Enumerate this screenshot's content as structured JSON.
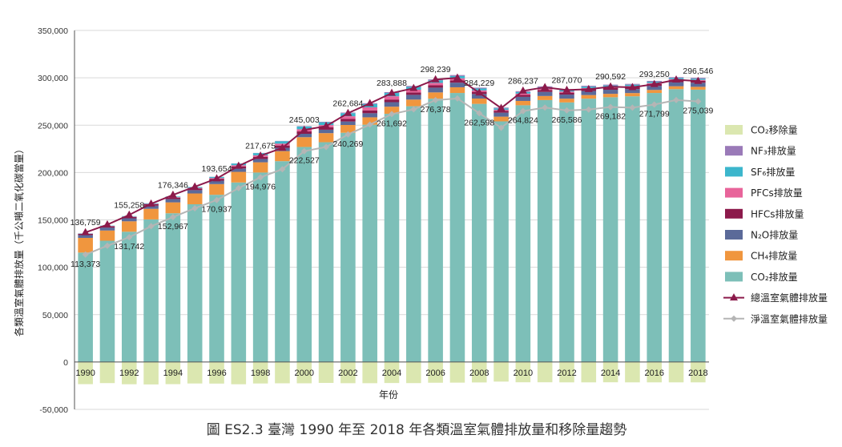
{
  "chart_data": {
    "type": "bar",
    "title": "圖 ES2.3 臺灣 1990 年至 2018 年各類溫室氣體排放量和移除量趨勢",
    "xlabel": "年份",
    "ylabel": "各類溫室氣體排放量（千公噸二氧化碳當量）",
    "ylim": [
      -50000,
      350000
    ],
    "yticks": [
      -50000,
      0,
      50000,
      100000,
      150000,
      200000,
      250000,
      300000,
      350000
    ],
    "ytick_labels": [
      "-50,000",
      "0",
      "50,000",
      "100,000",
      "150,000",
      "200,000",
      "250,000",
      "300,000",
      "350,000"
    ],
    "grid": true,
    "legend_position": "right",
    "categories": [
      "1990",
      "1991",
      "1992",
      "1993",
      "1994",
      "1995",
      "1996",
      "1997",
      "1998",
      "1999",
      "2000",
      "2001",
      "2002",
      "2003",
      "2004",
      "2005",
      "2006",
      "2007",
      "2008",
      "2009",
      "2010",
      "2011",
      "2012",
      "2013",
      "2014",
      "2015",
      "2016",
      "2017",
      "2018"
    ],
    "xtick_labels": [
      "1990",
      "",
      "1992",
      "",
      "1994",
      "",
      "1996",
      "",
      "1998",
      "",
      "2000",
      "",
      "2002",
      "",
      "2004",
      "",
      "2006",
      "",
      "2008",
      "",
      "2010",
      "",
      "2012",
      "",
      "2014",
      "",
      "2016",
      "",
      "2018"
    ],
    "series": [
      {
        "name": "CO₂排放量",
        "kind": "bar",
        "color": "#7dbfb8",
        "values": [
          115500,
          128000,
          137500,
          150500,
          157000,
          166500,
          176500,
          189500,
          200000,
          212000,
          227000,
          232000,
          242000,
          250500,
          262000,
          270000,
          278000,
          284000,
          272500,
          254000,
          271000,
          276500,
          274000,
          278000,
          279500,
          280500,
          284000,
          288000,
          287500
        ]
      },
      {
        "name": "CH₄排放量",
        "kind": "bar",
        "color": "#f0963e",
        "values": [
          15500,
          10800,
          11000,
          11200,
          11500,
          11400,
          11300,
          11200,
          10800,
          10600,
          10300,
          9600,
          8200,
          7800,
          7500,
          7000,
          6600,
          6000,
          5600,
          5000,
          4600,
          4300,
          4000,
          3800,
          3600,
          3400,
          3200,
          3100,
          3000
        ]
      },
      {
        "name": "N₂O排放量",
        "kind": "bar",
        "color": "#5b6a99",
        "values": [
          3000,
          3100,
          3200,
          3300,
          3400,
          3500,
          3600,
          3600,
          3500,
          3500,
          3600,
          3600,
          3700,
          4300,
          4800,
          5000,
          5000,
          4900,
          4800,
          4200,
          4300,
          4300,
          4300,
          4300,
          4300,
          4300,
          4300,
          4300,
          4300
        ]
      },
      {
        "name": "HFCs排放量",
        "kind": "bar",
        "color": "#8c1a4b",
        "values": [
          1200,
          1300,
          1400,
          1500,
          1600,
          1800,
          2000,
          2200,
          2300,
          2400,
          2500,
          2600,
          2700,
          3000,
          2800,
          2600,
          2500,
          2400,
          2300,
          2000,
          2000,
          2000,
          2000,
          2000,
          2000,
          2000,
          2000,
          2100,
          2100
        ]
      },
      {
        "name": "PFCs排放量",
        "kind": "bar",
        "color": "#e8649a",
        "values": [
          300,
          350,
          400,
          450,
          500,
          600,
          800,
          1200,
          1600,
          2000,
          2300,
          2300,
          2800,
          3200,
          3400,
          2800,
          2500,
          2200,
          1500,
          1000,
          1400,
          1300,
          1200,
          1100,
          1100,
          1100,
          1000,
          1000,
          900
        ]
      },
      {
        "name": "SF₆排放量",
        "kind": "bar",
        "color": "#3cb6cc",
        "values": [
          300,
          400,
          500,
          600,
          700,
          900,
          1200,
          1800,
          2300,
          2600,
          2900,
          3000,
          3300,
          3600,
          3500,
          3000,
          2700,
          2400,
          2000,
          1600,
          1700,
          1700,
          1700,
          1500,
          1400,
          1400,
          1300,
          1300,
          1300
        ]
      },
      {
        "name": "NF₃排放量",
        "kind": "bar",
        "color": "#9a7ab8",
        "values": [
          0,
          0,
          0,
          0,
          0,
          0,
          100,
          150,
          200,
          300,
          400,
          500,
          600,
          800,
          900,
          1000,
          1000,
          1000,
          900,
          800,
          900,
          900,
          900,
          900,
          900,
          900,
          900,
          900,
          900
        ]
      },
      {
        "name": "CO₂移除量",
        "kind": "removal",
        "color": "#dbe7b0",
        "values": [
          -23400,
          -22300,
          -23500,
          -23700,
          -23400,
          -22700,
          -22800,
          -23500,
          -22700,
          -22500,
          -22500,
          -22100,
          -22400,
          -22400,
          -22200,
          -22300,
          -21900,
          -21800,
          -21600,
          -20700,
          -21400,
          -21400,
          -21500,
          -21500,
          -21400,
          -21500,
          -21500,
          -21500,
          -21500
        ]
      },
      {
        "name": "總溫室氣體排放量",
        "kind": "line",
        "color": "#8c1a4b",
        "marker": "triangle",
        "values": [
          136759,
          145000,
          155258,
          167000,
          176346,
          185000,
          193654,
          207000,
          217675,
          226000,
          245003,
          249000,
          262684,
          273000,
          283888,
          289000,
          298239,
          300000,
          284229,
          268000,
          286237,
          290000,
          287070,
          288000,
          290592,
          290000,
          293250,
          298000,
          296546
        ]
      },
      {
        "name": "淨溫室氣體排放量",
        "kind": "line",
        "color": "#b5b5b5",
        "marker": "diamond",
        "values": [
          113373,
          122700,
          131742,
          143300,
          152967,
          162300,
          170937,
          183500,
          194976,
          203500,
          222527,
          227000,
          240269,
          250600,
          261692,
          266700,
          276378,
          278200,
          262598,
          247300,
          264824,
          268600,
          265586,
          266500,
          269182,
          268500,
          271799,
          276500,
          275039
        ]
      }
    ],
    "data_labels": {
      "total": [
        {
          "year": "1990",
          "text": "136,759"
        },
        {
          "year": "1992",
          "text": "155,258"
        },
        {
          "year": "1994",
          "text": "176,346"
        },
        {
          "year": "1996",
          "text": "193,654"
        },
        {
          "year": "1998",
          "text": "217,675"
        },
        {
          "year": "2000",
          "text": "245,003"
        },
        {
          "year": "2002",
          "text": "262,684"
        },
        {
          "year": "2004",
          "text": "283,888"
        },
        {
          "year": "2006",
          "text": "298,239"
        },
        {
          "year": "2008",
          "text": "284,229"
        },
        {
          "year": "2010",
          "text": "286,237"
        },
        {
          "year": "2012",
          "text": "287,070"
        },
        {
          "year": "2014",
          "text": "290,592"
        },
        {
          "year": "2016",
          "text": "293,250"
        },
        {
          "year": "2018",
          "text": "296,546"
        }
      ],
      "net": [
        {
          "year": "1990",
          "text": "113,373"
        },
        {
          "year": "1992",
          "text": "131,742"
        },
        {
          "year": "1994",
          "text": "152,967"
        },
        {
          "year": "1996",
          "text": "170,937"
        },
        {
          "year": "1998",
          "text": "194,976"
        },
        {
          "year": "2000",
          "text": "222,527"
        },
        {
          "year": "2002",
          "text": "240,269"
        },
        {
          "year": "2004",
          "text": "261,692"
        },
        {
          "year": "2006",
          "text": "276,378"
        },
        {
          "year": "2008",
          "text": "262,598"
        },
        {
          "year": "2010",
          "text": "264,824"
        },
        {
          "year": "2012",
          "text": "265,586"
        },
        {
          "year": "2014",
          "text": "269,182"
        },
        {
          "year": "2016",
          "text": "271,799"
        },
        {
          "year": "2018",
          "text": "275,039"
        }
      ]
    },
    "legend": [
      {
        "label": "CO₂移除量",
        "swatch": "box",
        "color": "#dbe7b0"
      },
      {
        "label": "NF₃排放量",
        "swatch": "box",
        "color": "#9a7ab8"
      },
      {
        "label": "SF₆排放量",
        "swatch": "box",
        "color": "#3cb6cc"
      },
      {
        "label": "PFCs排放量",
        "swatch": "box",
        "color": "#e8649a"
      },
      {
        "label": "HFCs排放量",
        "swatch": "box",
        "color": "#8c1a4b"
      },
      {
        "label": "N₂O排放量",
        "swatch": "box",
        "color": "#5b6a99"
      },
      {
        "label": "CH₄排放量",
        "swatch": "box",
        "color": "#f0963e"
      },
      {
        "label": "CO₂排放量",
        "swatch": "box",
        "color": "#7dbfb8"
      },
      {
        "label": "總溫室氣體排放量",
        "swatch": "line-triangle",
        "color": "#8c1a4b"
      },
      {
        "label": "淨溫室氣體排放量",
        "swatch": "line-diamond",
        "color": "#b5b5b5"
      }
    ]
  }
}
